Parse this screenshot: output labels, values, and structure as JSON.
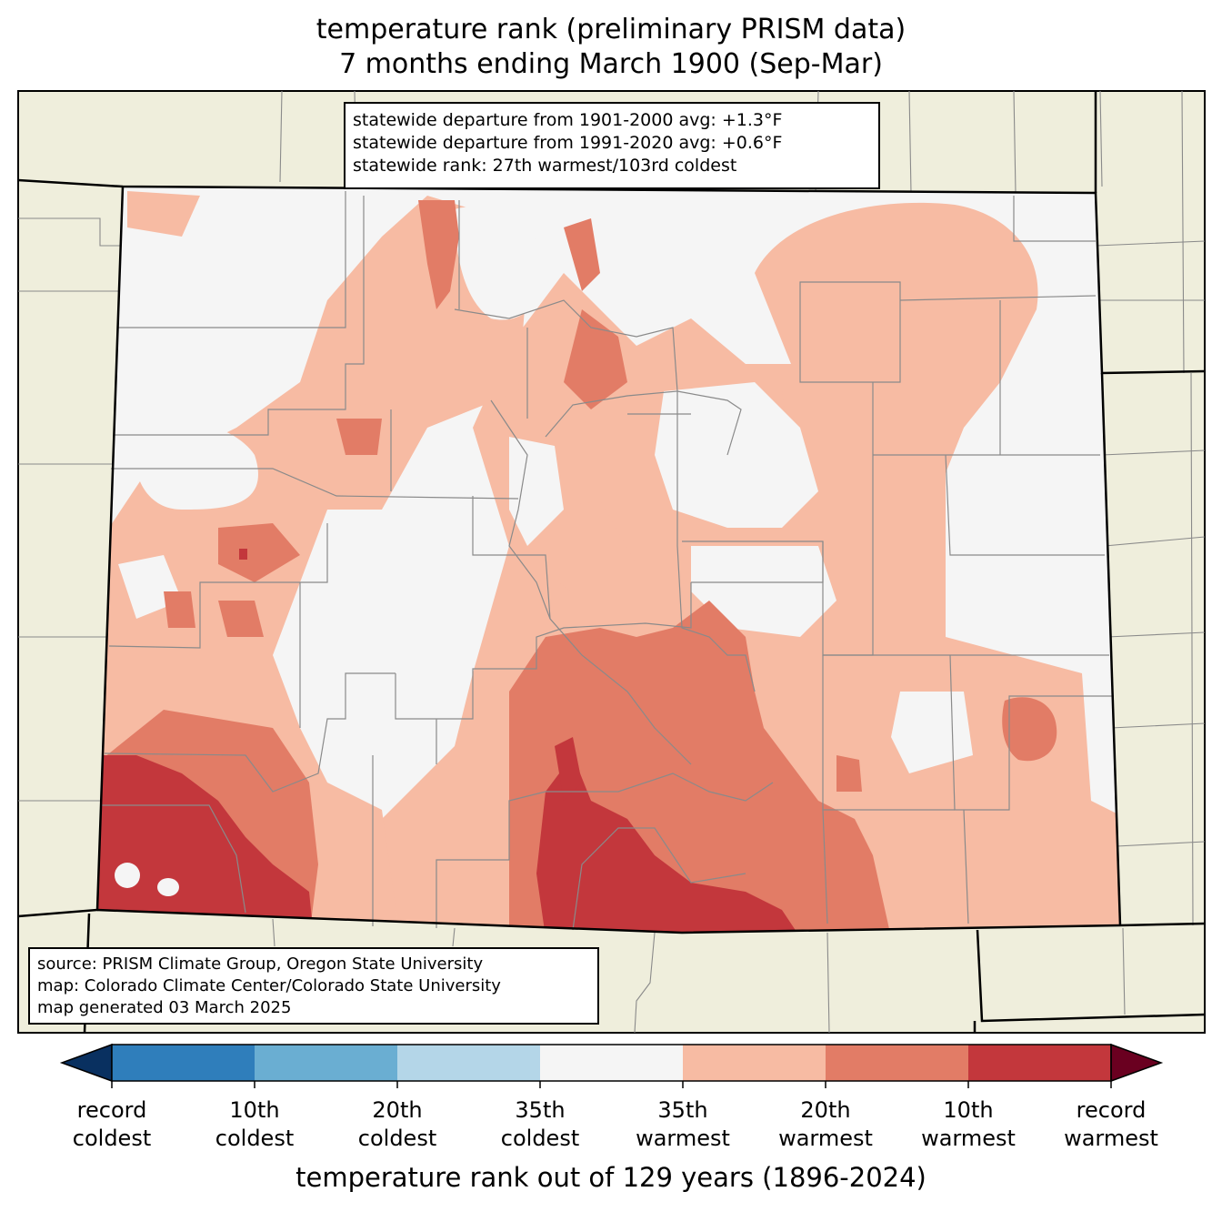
{
  "title": {
    "line1": "temperature rank (preliminary PRISM data)",
    "line2": "7 months ending March 1900 (Sep-Mar)"
  },
  "stats_box": {
    "line1": "statewide departure from 1901-2000 avg: +1.3°F",
    "line2": "statewide departure from 1991-2020 avg: +0.6°F",
    "line3": "statewide rank: 27th warmest/103rd coldest"
  },
  "source_box": {
    "line1": "source: PRISM Climate Group, Oregon State University",
    "line2": "map: Colorado Climate Center/Colorado State University",
    "line3": "map generated 03 March 2025"
  },
  "colors": {
    "land": "#efeedc",
    "near_normal": "#f5f5f5",
    "warm35": "#f7bba3",
    "warm20": "#e27c66",
    "warm10": "#c3373c",
    "record_warm": "#6a0020",
    "cold35": "#b4d6e8",
    "cold20": "#6aaed2",
    "cold10": "#2f7ebb",
    "record_cold": "#093060"
  },
  "colorbar": {
    "ticks": [
      {
        "line1": "record",
        "line2": "coldest"
      },
      {
        "line1": "10th",
        "line2": "coldest"
      },
      {
        "line1": "20th",
        "line2": "coldest"
      },
      {
        "line1": "35th",
        "line2": "coldest"
      },
      {
        "line1": "35th",
        "line2": "warmest"
      },
      {
        "line1": "20th",
        "line2": "warmest"
      },
      {
        "line1": "10th",
        "line2": "warmest"
      },
      {
        "line1": "record",
        "line2": "warmest"
      }
    ],
    "label": "temperature rank out of 129 years (1896-2024)"
  }
}
